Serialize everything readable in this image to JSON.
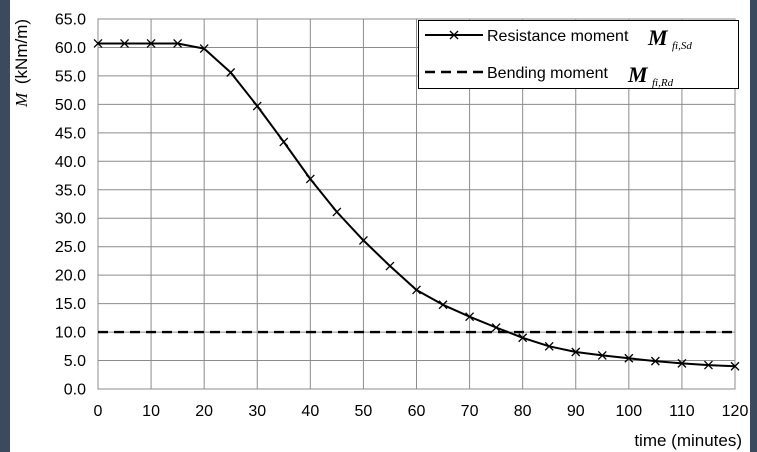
{
  "colors": {
    "frame": "#3b4a5c",
    "panel": "#ffffff",
    "grid": "#8c8c8c",
    "series": "#000000"
  },
  "chart_data": {
    "type": "line",
    "xlabel": "time (minutes)",
    "ylabel": {
      "symbol": "M",
      "unit": "(kNm/m)"
    },
    "xlim": [
      0,
      120
    ],
    "ylim": [
      0,
      65
    ],
    "xticks": [
      "0",
      "10",
      "20",
      "30",
      "40",
      "50",
      "60",
      "70",
      "80",
      "90",
      "100",
      "110",
      "120"
    ],
    "yticks": [
      "0.0",
      "5.0",
      "10.0",
      "15.0",
      "20.0",
      "25.0",
      "30.0",
      "35.0",
      "40.0",
      "45.0",
      "50.0",
      "55.0",
      "60.0",
      "65.0"
    ],
    "grid": true,
    "legend": "top-right",
    "series": [
      {
        "name": "Resistance moment",
        "symbol": "M",
        "subscript": "fi,Sd",
        "line": "solid",
        "marker": "x",
        "x": [
          0,
          5,
          10,
          15,
          20,
          25,
          30,
          35,
          40,
          45,
          50,
          55,
          60,
          65,
          70,
          75,
          80,
          85,
          90,
          95,
          100,
          105,
          110,
          115,
          120
        ],
        "y": [
          60.7,
          60.7,
          60.7,
          60.7,
          59.8,
          55.6,
          49.7,
          43.4,
          36.9,
          31.1,
          26.1,
          21.6,
          17.4,
          14.8,
          12.7,
          10.8,
          9.0,
          7.5,
          6.5,
          5.9,
          5.4,
          4.9,
          4.5,
          4.2,
          4.0
        ]
      },
      {
        "name": "Bending moment",
        "symbol": "M",
        "subscript": "fi,Rd",
        "line": "dashed",
        "marker": "none",
        "x": [
          0,
          120
        ],
        "y": [
          10.0,
          10.0
        ]
      }
    ]
  }
}
